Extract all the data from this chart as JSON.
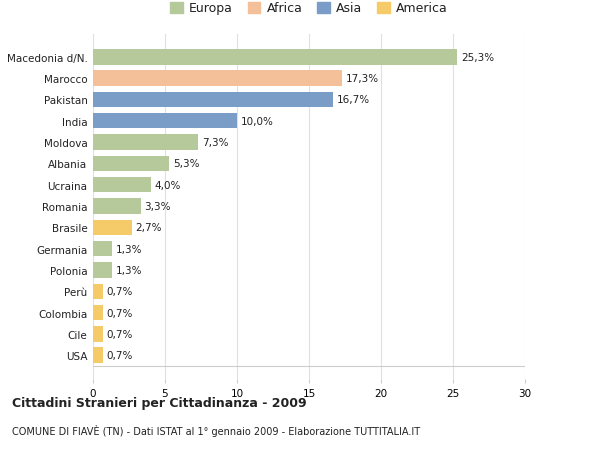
{
  "categories": [
    "Macedonia d/N.",
    "Marocco",
    "Pakistan",
    "India",
    "Moldova",
    "Albania",
    "Ucraina",
    "Romania",
    "Brasile",
    "Germania",
    "Polonia",
    "Perù",
    "Colombia",
    "Cile",
    "USA"
  ],
  "values": [
    25.3,
    17.3,
    16.7,
    10.0,
    7.3,
    5.3,
    4.0,
    3.3,
    2.7,
    1.3,
    1.3,
    0.7,
    0.7,
    0.7,
    0.7
  ],
  "labels": [
    "25,3%",
    "17,3%",
    "16,7%",
    "10,0%",
    "7,3%",
    "5,3%",
    "4,0%",
    "3,3%",
    "2,7%",
    "1,3%",
    "1,3%",
    "0,7%",
    "0,7%",
    "0,7%",
    "0,7%"
  ],
  "continents": [
    "Europa",
    "Africa",
    "Asia",
    "Asia",
    "Europa",
    "Europa",
    "Europa",
    "Europa",
    "America",
    "Europa",
    "Europa",
    "America",
    "America",
    "America",
    "America"
  ],
  "colors": {
    "Europa": "#b5c99a",
    "Africa": "#f4c09a",
    "Asia": "#7a9dc8",
    "America": "#f5cb6a"
  },
  "legend_order": [
    "Europa",
    "Africa",
    "Asia",
    "America"
  ],
  "xlim": [
    0,
    30
  ],
  "xticks": [
    0,
    5,
    10,
    15,
    20,
    25,
    30
  ],
  "title": "Cittadini Stranieri per Cittadinanza - 2009",
  "subtitle": "COMUNE DI FIAVÈ (TN) - Dati ISTAT al 1° gennaio 2009 - Elaborazione TUTTITALIA.IT",
  "background_color": "#ffffff",
  "plot_bg_color": "#ffffff",
  "grid_color": "#e0e0e0",
  "text_color": "#222222",
  "bar_height": 0.72,
  "label_fontsize": 7.5,
  "tick_fontsize": 7.5,
  "legend_fontsize": 9
}
